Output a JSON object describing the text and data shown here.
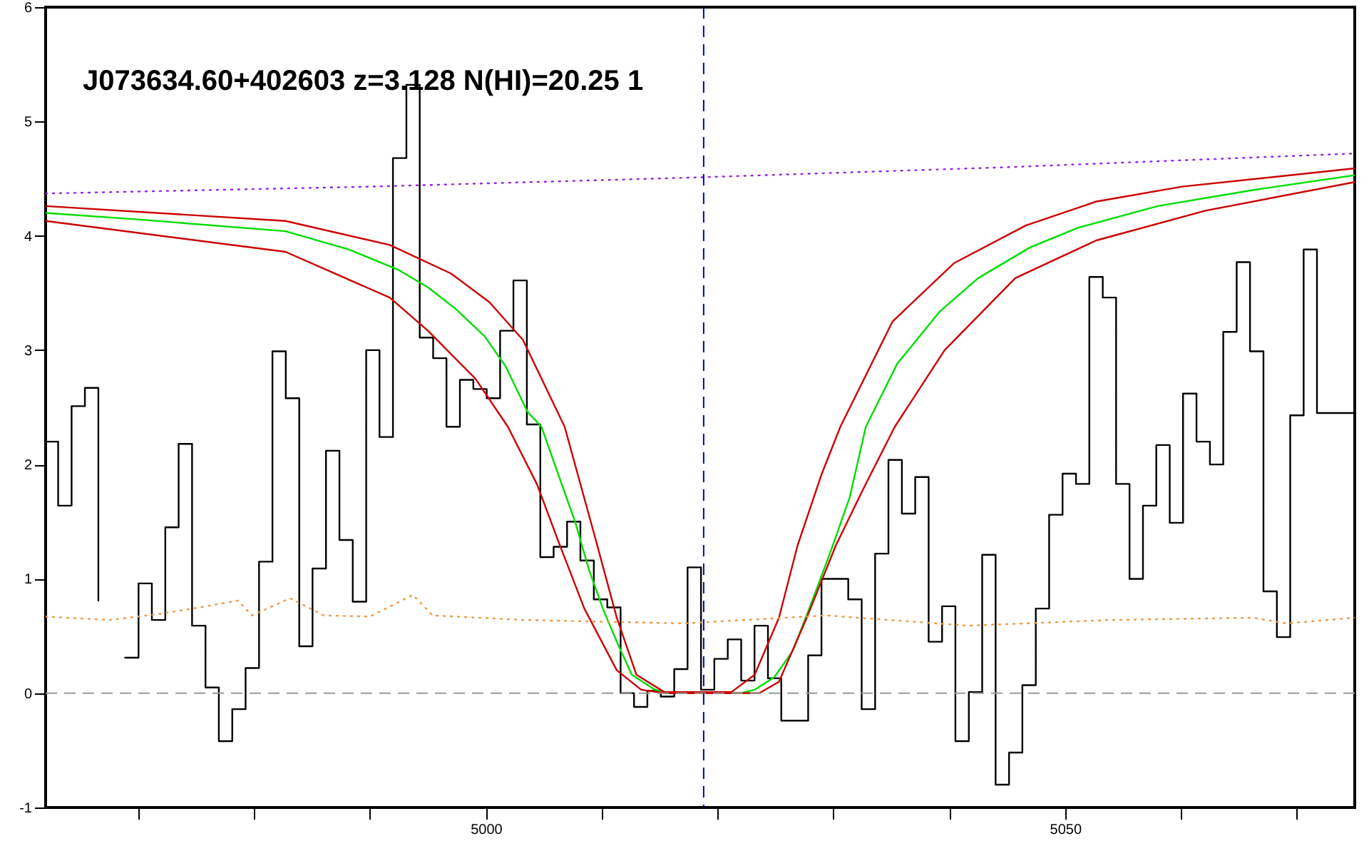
{
  "chart_data": {
    "type": "step",
    "annotations": [
      "J073634.60+402603 z=3.128 N(HI)=20.25 1"
    ],
    "xlim": [
      4962,
      5075
    ],
    "ylim": [
      -1,
      6
    ],
    "xticks": [
      {
        "value": 4970,
        "label": null
      },
      {
        "value": 4980,
        "label": null
      },
      {
        "value": 4990,
        "label": null
      },
      5000,
      {
        "value": 5010,
        "label": null
      },
      {
        "value": 5020,
        "label": null
      },
      {
        "value": 5030,
        "label": null
      },
      {
        "value": 5040,
        "label": null
      },
      5050,
      {
        "value": 5060,
        "label": null
      },
      {
        "value": 5070,
        "label": null
      }
    ],
    "yticks": [
      -1,
      0,
      1,
      2,
      3,
      4,
      5,
      6
    ],
    "grid": false,
    "series": [
      {
        "type": "step",
        "color": "#000000",
        "x": [
          4962,
          4963.08,
          4964.24,
          4965.39,
          4966.55,
          4967.7,
          4968.86,
          4970.02,
          4971.17,
          4972.33,
          4973.48,
          4974.64,
          4975.8,
          4976.95,
          4978.11,
          4979.26,
          4980.42,
          4981.58,
          4982.73,
          4983.89,
          4985.04,
          4986.2,
          4987.36,
          4988.51,
          4989.67,
          4990.82,
          4991.98,
          4993.14,
          4994.29,
          4995.45,
          4996.6,
          4997.76,
          4998.92,
          5000.07,
          5001.23,
          5002.38,
          5003.54,
          5004.7,
          5005.85,
          5007.01,
          5008.16,
          5009.32,
          5010.48,
          5011.63,
          5012.79,
          5013.94,
          5015.1,
          5016.26,
          5017.41,
          5018.57,
          5019.72,
          5020.88,
          5022.04,
          5023.19,
          5024.35,
          5025.5,
          5026.66,
          5027.82,
          5028.97,
          5030.13,
          5031.28,
          5032.44,
          5033.6,
          5034.75,
          5035.91,
          5037.06,
          5038.22,
          5039.38,
          5040.53,
          5041.69,
          5042.84,
          5044.0,
          5045.16,
          5046.31,
          5047.47,
          5048.62,
          5049.78,
          5050.94,
          5052.09,
          5053.25,
          5054.4,
          5055.56,
          5056.72,
          5057.87,
          5059.03,
          5060.18,
          5061.34,
          5062.5,
          5063.65,
          5064.81,
          5065.96,
          5067.12,
          5068.28,
          5069.43,
          5070.59,
          5071.74,
          5075
        ],
        "values": [
          2.2,
          1.64,
          2.51,
          2.67,
          0.81,
          null,
          0.31,
          0.96,
          0.64,
          1.45,
          2.18,
          0.59,
          0.05,
          -0.42,
          -0.14,
          0.22,
          1.15,
          2.99,
          2.58,
          0.41,
          1.09,
          2.12,
          1.34,
          0.8,
          3.0,
          2.24,
          4.68,
          5.32,
          3.11,
          2.93,
          2.33,
          2.74,
          2.66,
          2.58,
          3.17,
          3.61,
          2.35,
          1.19,
          1.28,
          1.5,
          1.16,
          0.82,
          0.75,
          0.0,
          -0.12,
          0.02,
          -0.03,
          0.21,
          1.1,
          0.03,
          0.3,
          0.47,
          0.11,
          0.59,
          0.13,
          -0.24,
          -0.24,
          0.33,
          1.0,
          1.0,
          0.82,
          -0.14,
          1.22,
          2.04,
          1.57,
          1.89,
          0.45,
          0.76,
          -0.42,
          0.01,
          1.21,
          -0.8,
          -0.52,
          0.07,
          0.74,
          1.56,
          1.92,
          1.83,
          3.64,
          3.46,
          1.83,
          1.0,
          1.64,
          2.17,
          1.49,
          2.62,
          2.2,
          2.0,
          3.16,
          3.77,
          2.99,
          0.89,
          0.49,
          2.43,
          3.88,
          2.45,
          2.45
        ]
      },
      {
        "type": "line",
        "color": "#00dd00",
        "x": [
          4962,
          4970.4,
          4982.7,
          4988.2,
          4992.5,
          4995.0,
          4997.4,
          4999.9,
          5001.7,
          5003.6,
          5004.8,
          5006.4,
          5007.7,
          5008.9,
          5010.1,
          5011.3,
          5012.6,
          5014.6,
          5015.8,
          5022.0,
          5023.2,
          5024.9,
          5026.5,
          5028.1,
          5029.8,
          5031.4,
          5032.8,
          5035.5,
          5039.2,
          5042.5,
          5047.0,
          5051.1,
          5058.0,
          5066.2,
          5075
        ],
        "values": [
          4.2,
          4.14,
          4.04,
          3.88,
          3.7,
          3.55,
          3.36,
          3.12,
          2.86,
          2.46,
          2.33,
          1.87,
          1.5,
          1.08,
          0.74,
          0.45,
          0.16,
          0.03,
          0,
          0,
          0.03,
          0.14,
          0.37,
          0.79,
          1.25,
          1.71,
          2.33,
          2.88,
          3.34,
          3.63,
          3.9,
          4.07,
          4.26,
          4.4,
          4.53
        ]
      },
      {
        "type": "line",
        "color": "#cc0000",
        "x": [
          4962,
          4982.7,
          4991.7,
          4997.0,
          5000.3,
          5003.2,
          5006.8,
          5009.3,
          5011.3,
          5013.0,
          5015.4,
          5021.2,
          5023.2,
          5025.3,
          5026.9,
          5029.0,
          5030.6,
          5035.1,
          5040.4,
          5046.6,
          5052.7,
          5060.1,
          5075
        ],
        "values": [
          4.26,
          4.13,
          3.92,
          3.67,
          3.42,
          3.09,
          2.33,
          1.41,
          0.66,
          0.16,
          0.01,
          0.01,
          0.16,
          0.66,
          1.29,
          1.92,
          2.33,
          3.25,
          3.76,
          4.09,
          4.3,
          4.43,
          4.59
        ]
      },
      {
        "type": "line",
        "color": "#cc0000",
        "x": [
          4962,
          4982.7,
          4991.7,
          4995.0,
          4999.1,
          5001.9,
          5004.4,
          5006.4,
          5008.5,
          5011.3,
          5013.4,
          5015.4,
          5023.6,
          5025.3,
          5027.7,
          5030.2,
          5032.6,
          5035.3,
          5039.6,
          5045.7,
          5052.7,
          5062.1,
          5075
        ],
        "values": [
          4.13,
          3.86,
          3.46,
          3.17,
          2.75,
          2.33,
          1.83,
          1.29,
          0.74,
          0.2,
          0.03,
          0,
          0,
          0.1,
          0.66,
          1.29,
          1.79,
          2.33,
          3.0,
          3.63,
          3.96,
          4.22,
          4.47
        ]
      },
      {
        "type": "line",
        "color": "#9922dd",
        "line_style": "dotted",
        "x": [
          4962,
          4990,
          5018,
          5045,
          5075
        ],
        "values": [
          4.37,
          4.43,
          4.51,
          4.6,
          4.72
        ]
      },
      {
        "type": "line",
        "color": "#ee9944",
        "line_style": "dotted",
        "x": [
          4962,
          4967.5,
          4971.6,
          4975.3,
          4978.6,
          4979.8,
          4983.1,
          4986.0,
          4990.0,
          4993.7,
          4995.4,
          5003.2,
          5017.1,
          5029.4,
          5041.6,
          5053.9,
          5066.2,
          5069.1,
          5075
        ],
        "values": [
          0.67,
          0.64,
          0.69,
          0.75,
          0.81,
          0.68,
          0.83,
          0.68,
          0.67,
          0.86,
          0.68,
          0.64,
          0.61,
          0.68,
          0.59,
          0.64,
          0.66,
          0.61,
          0.66
        ]
      }
    ],
    "ref_lines": [
      {
        "axis": "y",
        "value": 0,
        "color": "#999999",
        "line_style": "dashed"
      },
      {
        "axis": "x",
        "value": 5018.8,
        "color": "#0000cc",
        "line_style": "dashed"
      }
    ]
  }
}
